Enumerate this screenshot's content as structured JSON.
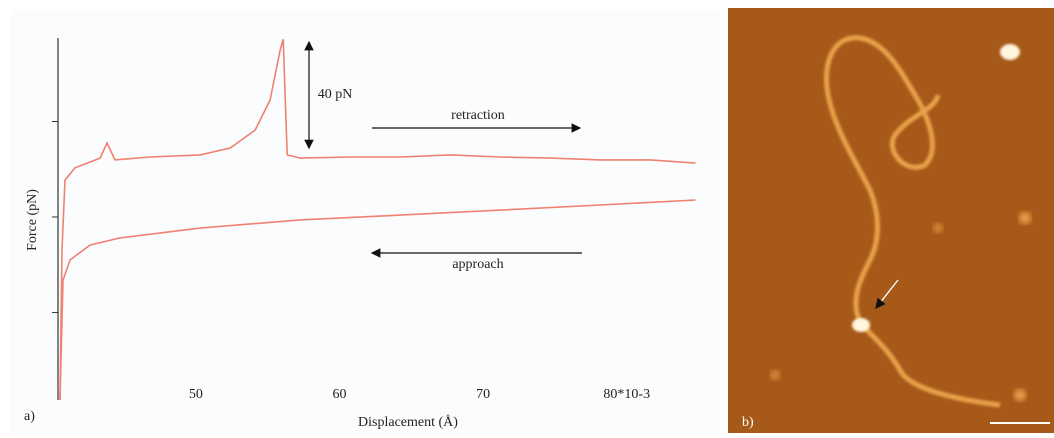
{
  "chart_data": {
    "type": "line",
    "xlabel": "Displacement (Å)",
    "ylabel": "Force (pN)",
    "panel_label": "a)",
    "series": [
      {
        "name": "retraction",
        "color": "#f08070",
        "x": [
          40.54,
          40.68,
          40.89,
          41.58,
          43.33,
          43.81,
          44.37,
          46.81,
          50.3,
          52.39,
          54.13,
          55.17,
          55.87,
          56.08,
          56.36,
          57.26,
          60.75,
          64.23,
          67.72,
          71.2,
          74.69,
          78.17,
          81.65,
          84.79
        ],
        "values": [
          0,
          56.6,
          82.9,
          87.5,
          91.2,
          96.9,
          90.5,
          91.6,
          92.4,
          95.0,
          101.8,
          113.1,
          132.0,
          136.0,
          92.4,
          91.2,
          91.6,
          91.6,
          92.4,
          91.6,
          91.2,
          90.5,
          90.5,
          89.3
        ]
      },
      {
        "name": "approach",
        "color": "#f08070",
        "x": [
          40.54,
          40.75,
          41.24,
          42.63,
          44.72,
          50.3,
          57.26,
          64.23,
          71.2,
          78.17,
          84.79
        ],
        "values": [
          0,
          45.2,
          52.8,
          58.4,
          61.1,
          64.8,
          67.9,
          69.7,
          71.6,
          73.5,
          75.4
        ]
      }
    ],
    "xlim": [
      40.4,
      85.1
    ],
    "ylim": [
      0,
      137
    ],
    "xticks": [
      50,
      60,
      70,
      {
        "value": 80,
        "label": "80*10-3"
      }
    ],
    "yticks": [
      33,
      69,
      105
    ],
    "scale_bar": {
      "label": "40 pN",
      "value": 40
    }
  },
  "panel_b": {
    "label": "b)"
  }
}
